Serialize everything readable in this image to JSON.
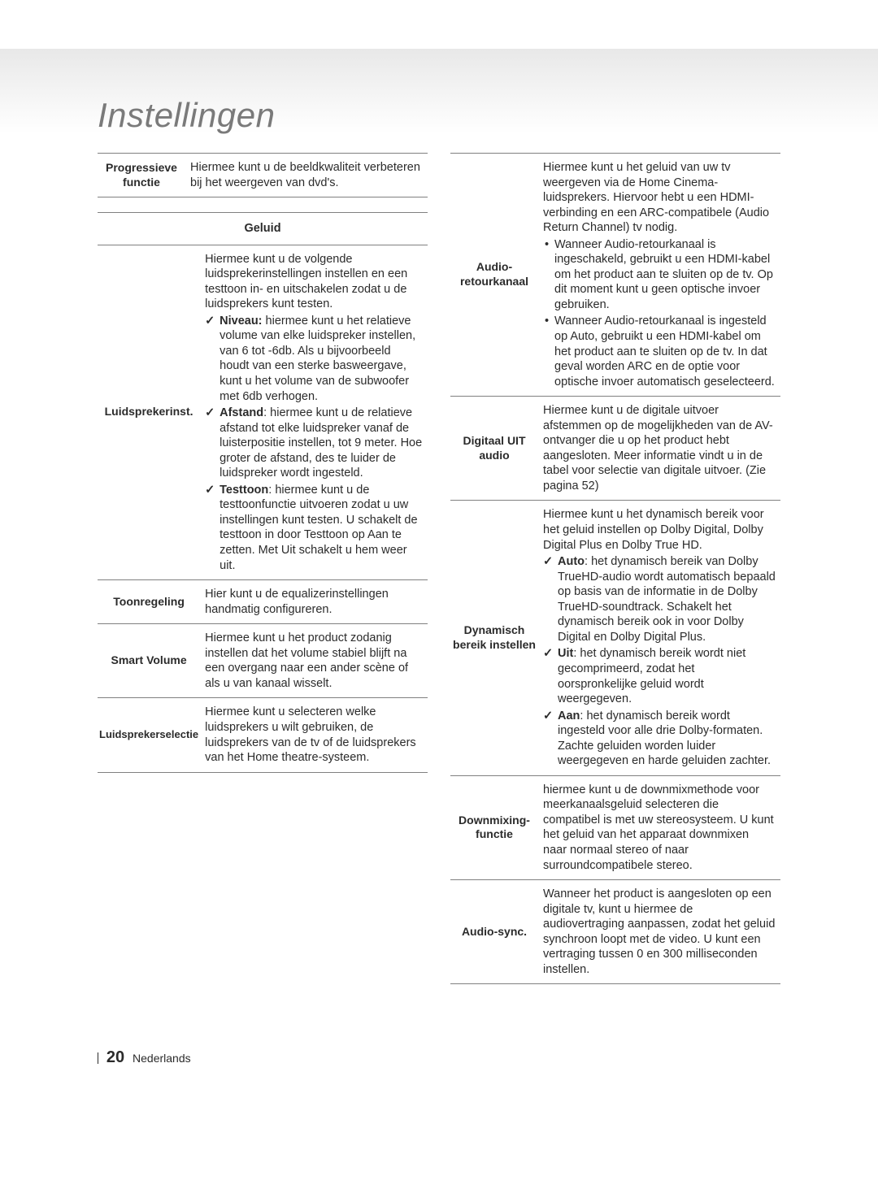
{
  "title": "Instellingen",
  "footer": {
    "page": "20",
    "lang": "Nederlands"
  },
  "left": {
    "row0": {
      "label": "Progressieve functie",
      "desc": "Hiermee kunt u de beeldkwaliteit verbeteren bij het weergeven van dvd's."
    },
    "category": "Geluid",
    "row1": {
      "label": "Luidsprekerinst.",
      "intro": "Hiermee kunt u de volgende luidsprekerinstellingen instellen en een testtoon in- en uitschakelen zodat u de luidsprekers kunt testen.",
      "niveau_bold": "Niveau:",
      "niveau": " hiermee kunt u het relatieve volume van elke luidspreker instellen, van 6 tot -6db. Als u bijvoorbeeld houdt van een sterke basweergave, kunt u het volume van de subwoofer met 6db verhogen.",
      "afstand_bold": "Afstand",
      "afstand": ": hiermee kunt u de relatieve afstand tot elke luidspreker vanaf de luisterpositie instellen, tot 9 meter. Hoe groter de afstand, des te luider de luidspreker wordt ingesteld.",
      "testtoon_bold": "Testtoon",
      "testtoon": ": hiermee kunt u de testtoonfunctie uitvoeren zodat u uw instellingen kunt testen. U schakelt de testtoon in door Testtoon op Aan te zetten. Met Uit schakelt u hem weer uit."
    },
    "row2": {
      "label": "Toonregeling",
      "desc": "Hier kunt u de equalizerinstellingen handmatig configureren."
    },
    "row3": {
      "label": "Smart Volume",
      "desc": "Hiermee kunt u het product zodanig instellen dat het volume stabiel blijft na een overgang naar een ander scène of als u van kanaal wisselt."
    },
    "row4": {
      "label": "Luidsprekerselectie",
      "desc": "Hiermee kunt u selecteren welke luidsprekers u wilt gebruiken, de luidsprekers van de tv of de luidsprekers van het Home theatre-systeem."
    }
  },
  "right": {
    "row0": {
      "label": "Audio-retourkanaal",
      "intro": "Hiermee kunt u het geluid van uw tv weergeven via de Home Cinema-luidsprekers. Hiervoor hebt u een HDMI-verbinding en een ARC-compatibele (Audio Return Channel) tv nodig.",
      "b0": "Wanneer Audio-retourkanaal is ingeschakeld, gebruikt u een HDMI-kabel om het product aan te sluiten op de tv. Op dit moment kunt u geen optische invoer gebruiken.",
      "b1": "Wanneer Audio-retourkanaal is ingesteld op Auto, gebruikt u een HDMI-kabel om het product aan te sluiten op de tv. In dat geval worden ARC en de optie voor optische invoer automatisch geselecteerd."
    },
    "row1": {
      "label": "Digitaal UIT audio",
      "desc": "Hiermee kunt u de digitale uitvoer afstemmen op de mogelijkheden van de AV-ontvanger die u op het product hebt aangesloten. Meer informatie vindt u in de tabel voor selectie van digitale uitvoer. (Zie pagina 52)"
    },
    "row2": {
      "label": "Dynamisch bereik instellen",
      "intro": "Hiermee kunt u het dynamisch bereik voor het geluid instellen op Dolby Digital, Dolby Digital Plus en Dolby True HD.",
      "auto_bold": "Auto",
      "auto": ": het dynamisch bereik van Dolby TrueHD-audio wordt automatisch bepaald op basis van de informatie in de Dolby TrueHD-soundtrack. Schakelt het dynamisch bereik ook in voor Dolby Digital en Dolby Digital Plus.",
      "uit_bold": "Uit",
      "uit": ": het dynamisch bereik wordt niet gecomprimeerd, zodat het oorspronkelijke geluid wordt weergegeven.",
      "aan_bold": "Aan",
      "aan": ": het dynamisch bereik wordt ingesteld voor alle drie Dolby-formaten. Zachte geluiden worden luider weergegeven en harde geluiden zachter."
    },
    "row3": {
      "label": "Downmixing-functie",
      "desc": "hiermee kunt u de downmixmethode voor meerkanaalsgeluid selecteren die compatibel is met uw stereosysteem. U kunt het geluid van het apparaat downmixen naar normaal stereo of naar surroundcompatibele stereo."
    },
    "row4": {
      "label": "Audio-sync.",
      "desc": "Wanneer het product is aangesloten op een digitale tv, kunt u hiermee de audiovertraging aanpassen, zodat het geluid synchroon loopt met de video. U kunt een vertraging tussen 0 en 300 milliseconden instellen."
    }
  }
}
